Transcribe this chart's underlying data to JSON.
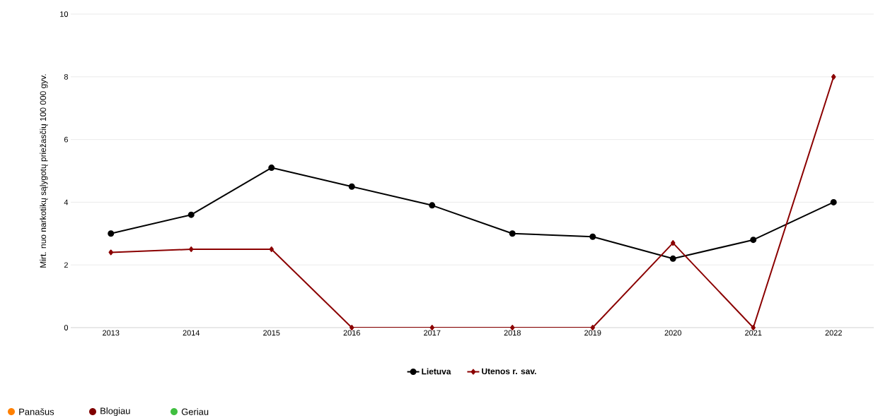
{
  "chart_data": {
    "type": "line",
    "ylabel": "Mirt. nuo narkotikų sąlygotų priežasčių 100 000 gyv.",
    "categories": [
      "2013",
      "2014",
      "2015",
      "2016",
      "2017",
      "2018",
      "2019",
      "2020",
      "2021",
      "2022"
    ],
    "series": [
      {
        "name": "Lietuva",
        "color": "#000000",
        "marker": "circle",
        "values": [
          3.0,
          3.6,
          5.1,
          4.5,
          3.9,
          3.0,
          2.9,
          2.2,
          2.8,
          4.0
        ]
      },
      {
        "name": "Utenos r. sav.",
        "color": "#8b0000",
        "marker": "diamond",
        "values": [
          2.4,
          2.5,
          2.5,
          0,
          0,
          0,
          0,
          2.7,
          0,
          8.0
        ]
      }
    ],
    "ylim": [
      0,
      10
    ],
    "yticks": [
      0,
      2,
      4,
      6,
      8,
      10
    ],
    "grid": "y",
    "legend": "bottom",
    "line_style": "solid",
    "annotations": [
      "Panašus",
      "Blogiau",
      "Geriau"
    ]
  }
}
